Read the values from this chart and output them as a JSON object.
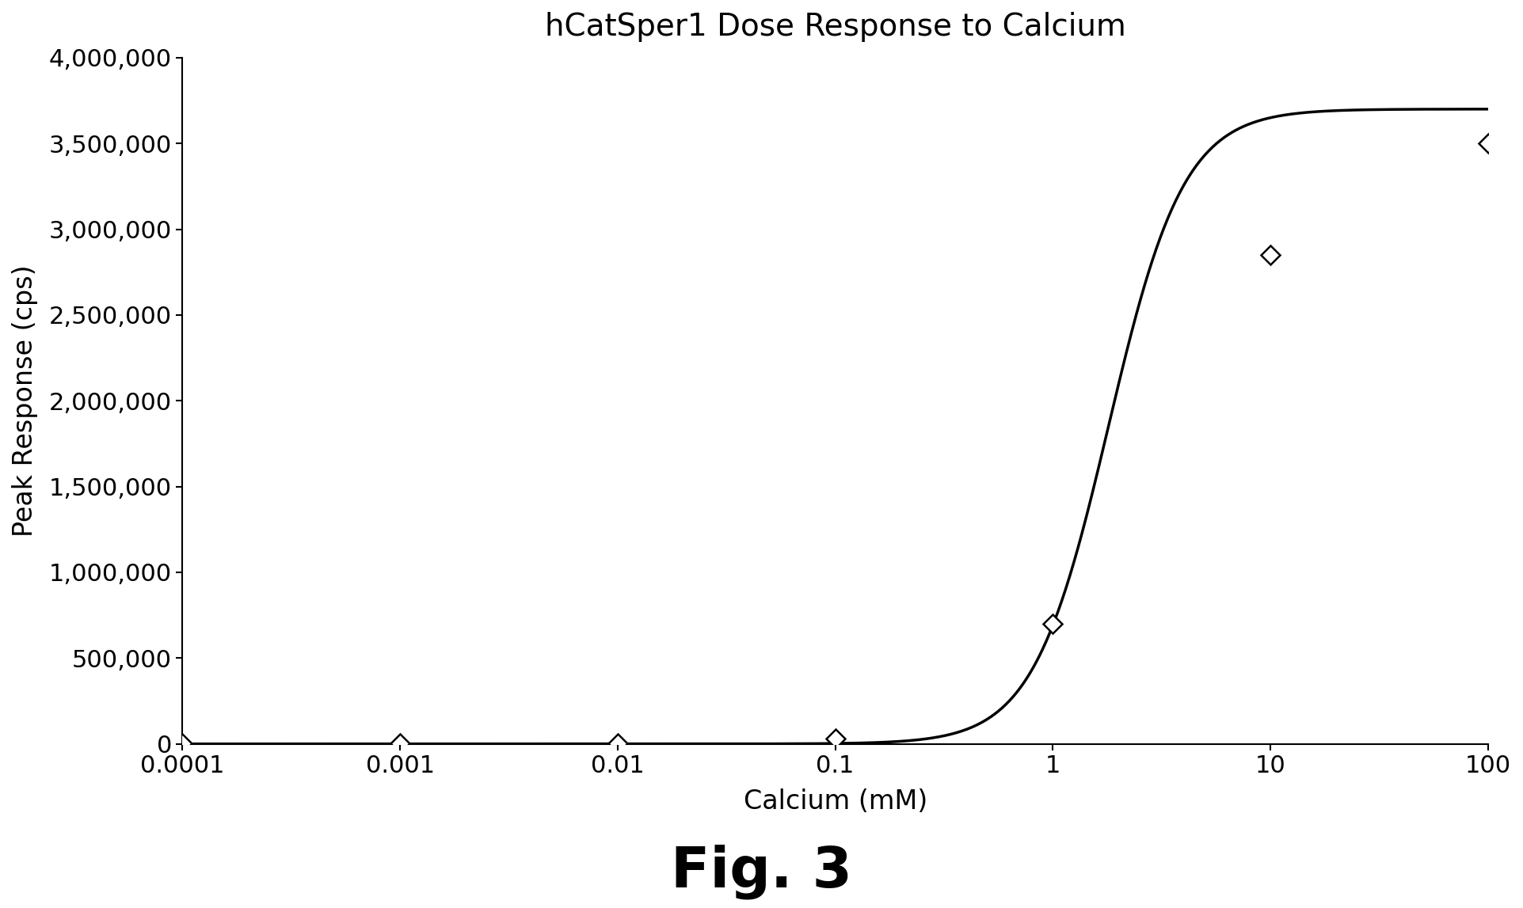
{
  "title": "hCatSper1 Dose Response to Calcium",
  "xlabel": "Calcium (mM)",
  "ylabel": "Peak Response (cps)",
  "fig_label": "Fig. 3",
  "x_data": [
    0.0001,
    0.001,
    0.01,
    0.1,
    1,
    10,
    100
  ],
  "y_data": [
    2000,
    2000,
    4000,
    30000,
    700000,
    2850000,
    3500000
  ],
  "hill_Emax": 3700000,
  "hill_EC50": 1.8,
  "hill_n": 2.5,
  "xmin": 0.0001,
  "xmax": 100,
  "ymin": 0,
  "ymax": 4000000,
  "yticks": [
    0,
    500000,
    1000000,
    1500000,
    2000000,
    2500000,
    3000000,
    3500000,
    4000000
  ],
  "ytick_labels": [
    "0",
    "500,000",
    "1,000,000",
    "1,500,000",
    "2,000,000",
    "2,500,000",
    "3,000,000",
    "3,500,000",
    "4,000,000"
  ],
  "xtick_labels": [
    "0.0001",
    "0.001",
    "0.01",
    "0.1",
    "1",
    "10",
    "100"
  ],
  "line_color": "#000000",
  "marker_style": "D",
  "marker_facecolor": "#ffffff",
  "marker_edgecolor": "#000000",
  "marker_size": 12,
  "marker_edge_width": 1.8,
  "background_color": "#ffffff",
  "title_fontsize": 28,
  "label_fontsize": 24,
  "tick_fontsize": 22,
  "fig_label_fontsize": 52,
  "linewidth": 2.5
}
